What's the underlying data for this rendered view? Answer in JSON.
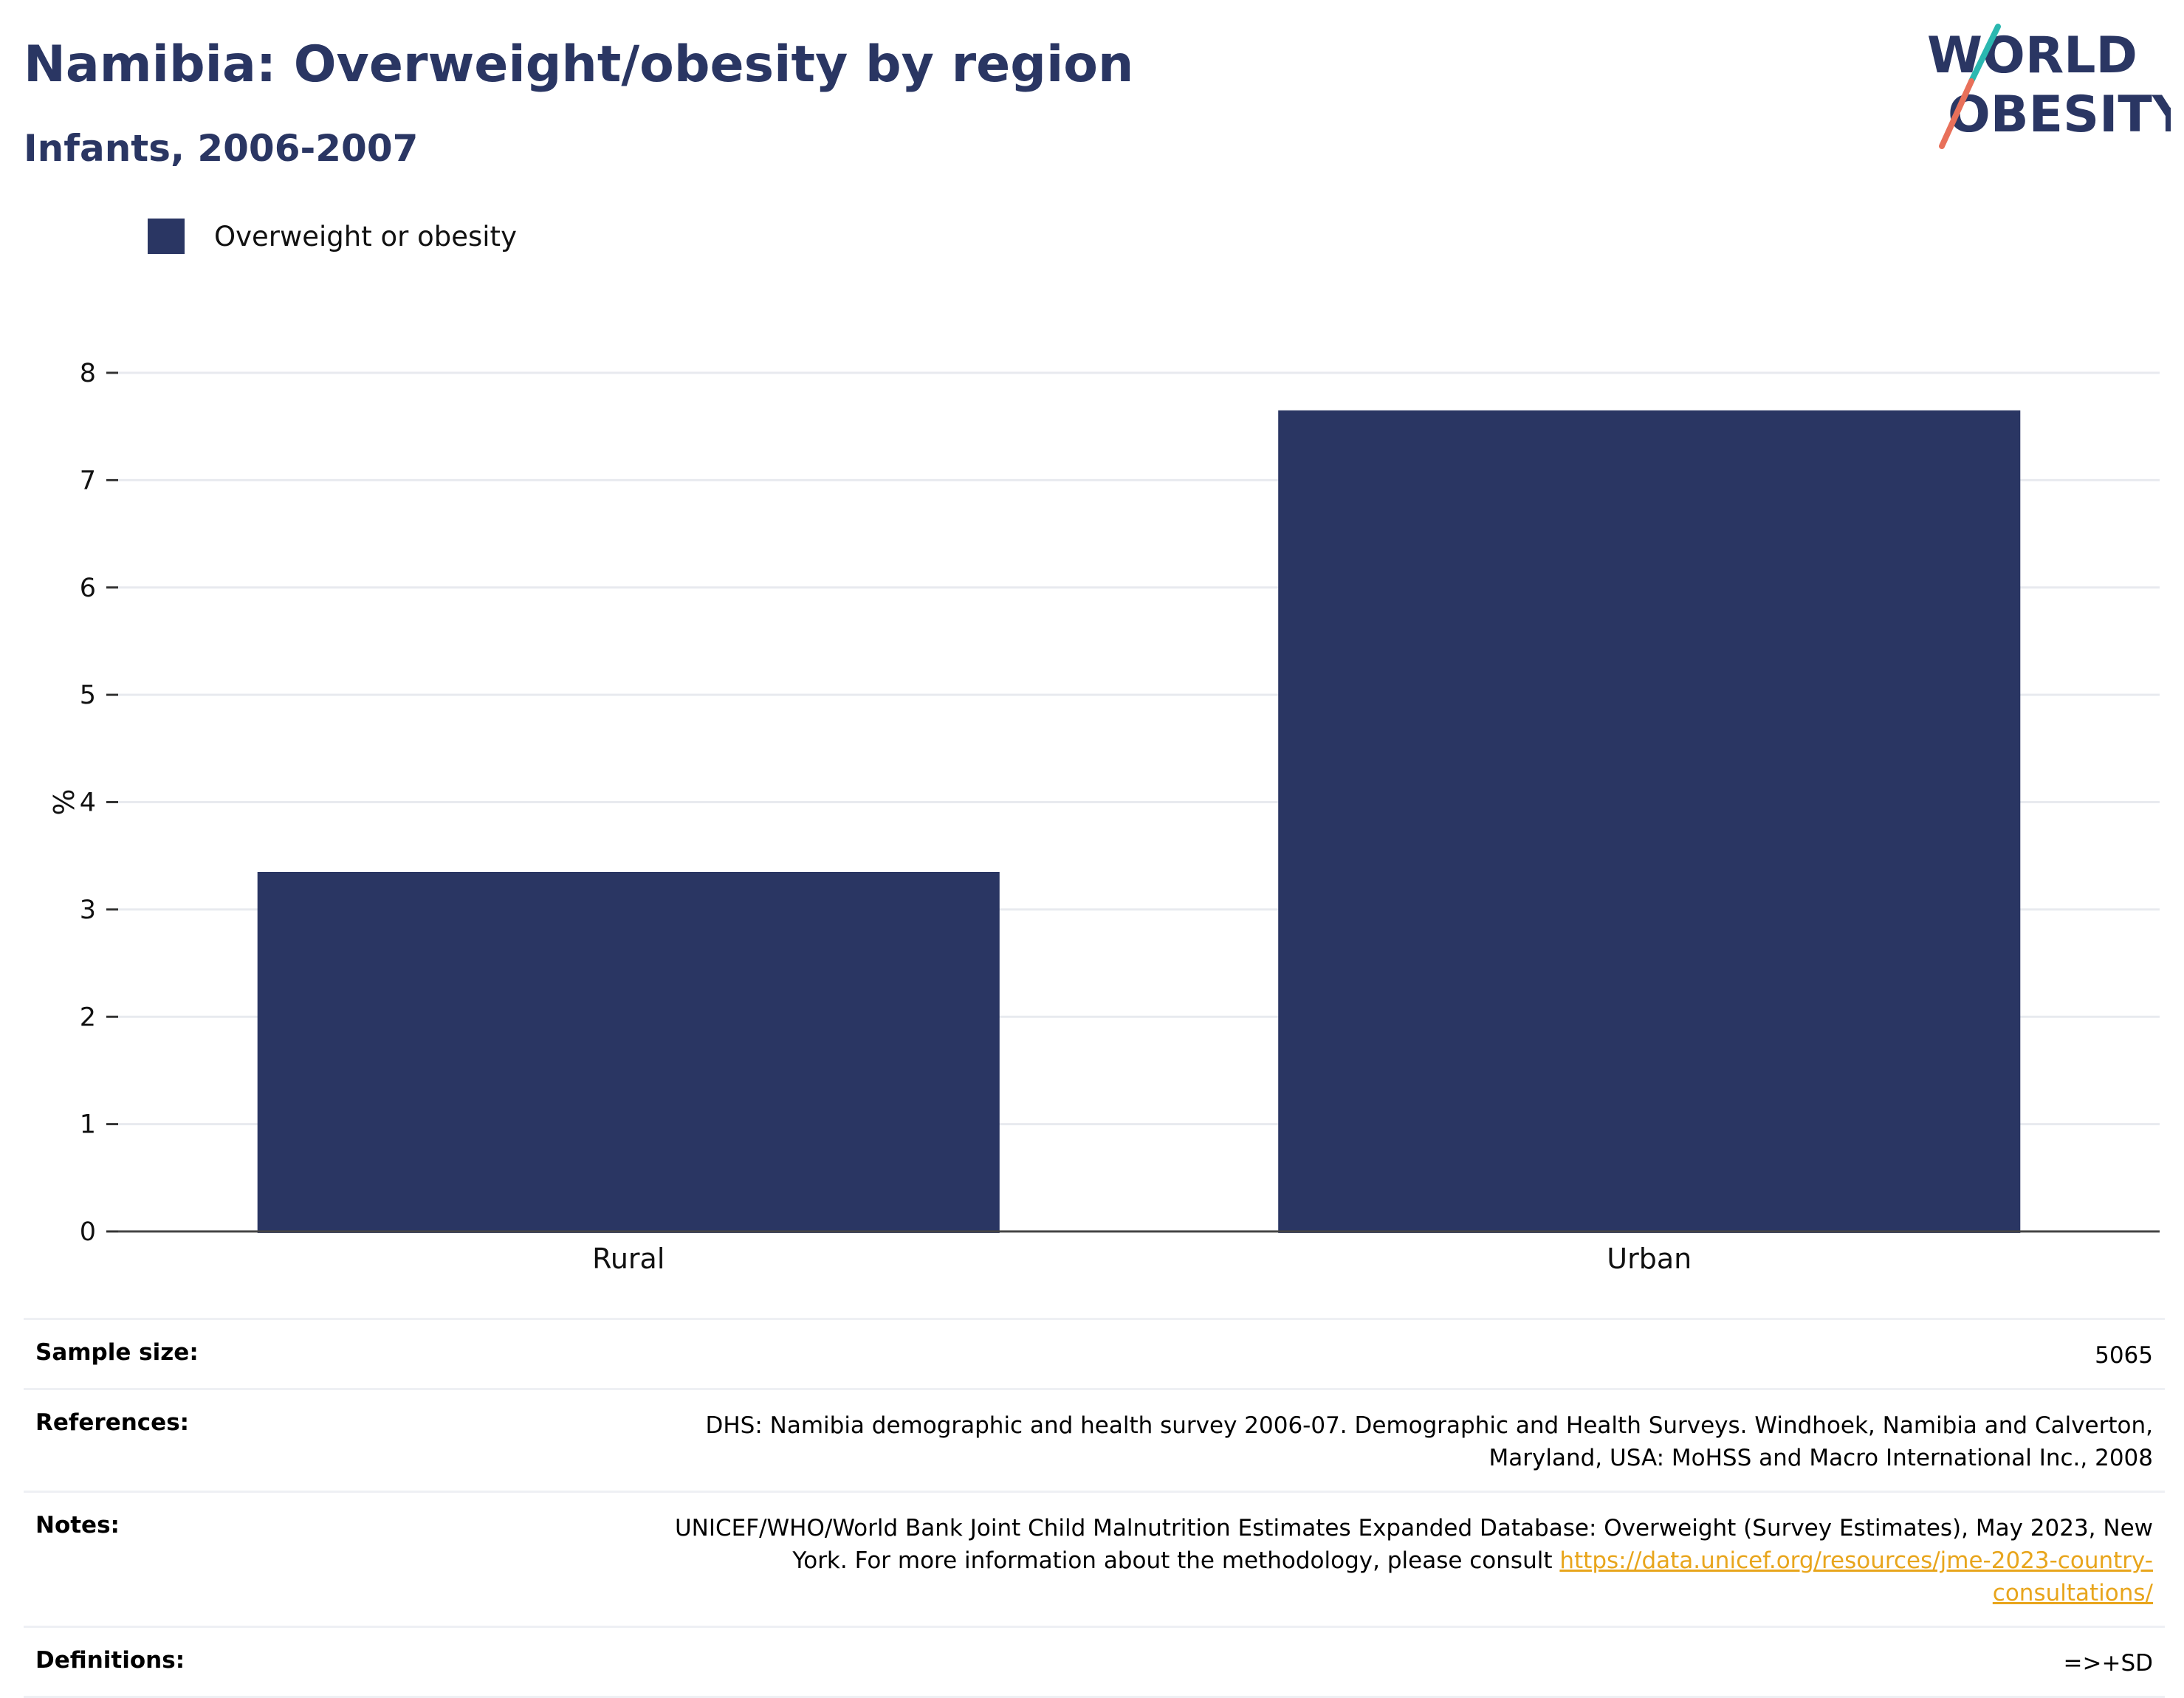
{
  "title": "Namibia: Overweight/obesity by region",
  "subtitle": "Infants, 2006-2007",
  "logo": {
    "line1": "WORLD",
    "line2": "OBESITY"
  },
  "legend": {
    "label": "Overweight or obesity",
    "color": "#2a3663"
  },
  "chart_data": {
    "type": "bar",
    "categories": [
      "Rural",
      "Urban"
    ],
    "series": [
      {
        "name": "Overweight or obesity",
        "values": [
          3.35,
          7.65
        ],
        "color": "#2a3663"
      }
    ],
    "ylabel": "%",
    "ylim": [
      0,
      8
    ],
    "yticks": [
      "0",
      "1",
      "2",
      "3",
      "4",
      "5",
      "6",
      "7",
      "8"
    ],
    "grid": true
  },
  "meta": {
    "sample_size_label": "Sample size:",
    "sample_size_value": "5065",
    "references_label": "References:",
    "references_value": "DHS: Namibia demographic and health survey 2006-07. Demographic and Health Surveys. Windhoek, Namibia and Calverton, Maryland, USA: MoHSS and Macro International Inc., 2008",
    "notes_label": "Notes:",
    "notes_text": "UNICEF/WHO/World Bank Joint Child Malnutrition Estimates Expanded Database: Overweight (Survey Estimates), May 2023, New York. For more information about the methodology, please consult ",
    "notes_link": "https://data.unicef.org/resources/jme-2023-country-consultations/",
    "definitions_label": "Definitions:",
    "definitions_value": "=>+SD"
  }
}
